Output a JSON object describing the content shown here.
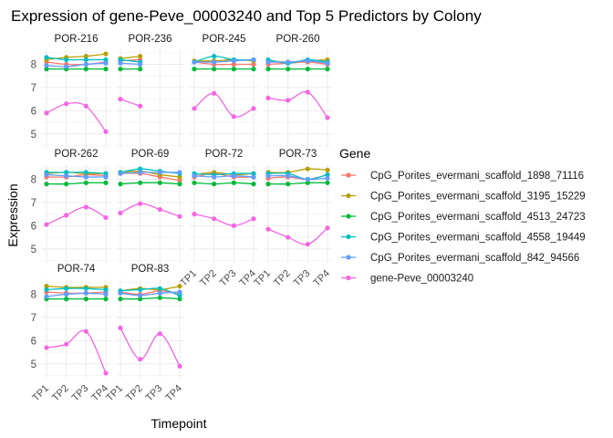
{
  "chart_data": {
    "type": "line",
    "title": "Expression of gene-Peve_00003240 and Top 5 Predictors by Colony",
    "xlabel": "Timepoint",
    "ylabel": "Expression",
    "x": [
      "TP1",
      "TP2",
      "TP3",
      "TP4"
    ],
    "y_ticks": [
      5,
      6,
      7,
      8
    ],
    "ylim": [
      4.4,
      8.65
    ],
    "grid": true,
    "legend": {
      "title": "Gene",
      "position": "right"
    },
    "series": [
      {
        "name": "CpG_Porites_evermani_scaffold_1898_71116",
        "color": "#F8766D"
      },
      {
        "name": "CpG_Porites_evermani_scaffold_3195_15229",
        "color": "#B79F00"
      },
      {
        "name": "CpG_Porites_evermani_scaffold_4513_24723",
        "color": "#00BA38"
      },
      {
        "name": "CpG_Porites_evermani_scaffold_4558_19449",
        "color": "#00BFC4"
      },
      {
        "name": "CpG_Porites_evermani_scaffold_842_94566",
        "color": "#619CFF"
      },
      {
        "name": "gene-Peve_00003240",
        "color": "#F564E3"
      }
    ],
    "panels": [
      {
        "name": "POR-216",
        "values": [
          [
            8.1,
            8.0,
            8.0,
            8.1
          ],
          [
            8.2,
            8.3,
            8.35,
            8.45
          ],
          [
            7.8,
            7.8,
            7.8,
            7.8
          ],
          [
            8.3,
            8.2,
            8.2,
            8.2
          ],
          [
            7.95,
            7.9,
            8.0,
            8.05
          ],
          [
            5.9,
            6.3,
            6.2,
            5.1
          ]
        ]
      },
      {
        "name": "POR-236",
        "values": [
          [
            8.15,
            8.2,
            null,
            null
          ],
          [
            8.25,
            8.35,
            null,
            null
          ],
          [
            7.8,
            7.8,
            null,
            null
          ],
          [
            8.2,
            8.1,
            null,
            null
          ],
          [
            8.05,
            8.0,
            null,
            null
          ],
          [
            6.5,
            6.2,
            null,
            null
          ]
        ]
      },
      {
        "name": "POR-245",
        "values": [
          [
            8.1,
            8.0,
            8.0,
            8.0
          ],
          [
            8.15,
            8.15,
            8.2,
            8.15
          ],
          [
            7.8,
            7.8,
            7.8,
            7.8
          ],
          [
            8.1,
            8.35,
            8.2,
            8.2
          ],
          [
            8.1,
            8.1,
            8.15,
            8.2
          ],
          [
            6.1,
            6.75,
            5.75,
            6.1
          ]
        ]
      },
      {
        "name": "POR-260",
        "values": [
          [
            8.0,
            8.05,
            8.1,
            8.0
          ],
          [
            8.15,
            8.1,
            8.15,
            8.2
          ],
          [
            7.8,
            7.8,
            7.8,
            7.8
          ],
          [
            8.2,
            8.05,
            8.2,
            8.1
          ],
          [
            8.1,
            8.1,
            8.15,
            8.05
          ],
          [
            6.55,
            6.45,
            6.8,
            5.7
          ]
        ]
      },
      {
        "name": "POR-262",
        "values": [
          [
            8.1,
            8.1,
            8.2,
            8.15
          ],
          [
            8.25,
            8.3,
            8.25,
            8.25
          ],
          [
            7.8,
            7.8,
            7.85,
            7.85
          ],
          [
            8.3,
            8.3,
            8.3,
            8.25
          ],
          [
            8.2,
            8.15,
            8.1,
            8.1
          ],
          [
            6.05,
            6.45,
            6.8,
            6.35
          ]
        ]
      },
      {
        "name": "POR-69",
        "values": [
          [
            8.25,
            8.25,
            8.1,
            7.95
          ],
          [
            8.3,
            8.35,
            8.2,
            8.1
          ],
          [
            7.8,
            7.85,
            7.85,
            7.8
          ],
          [
            8.3,
            8.45,
            8.35,
            8.25
          ],
          [
            8.25,
            8.3,
            8.3,
            8.3
          ],
          [
            6.55,
            6.95,
            6.7,
            6.4
          ]
        ]
      },
      {
        "name": "POR-72",
        "values": [
          [
            8.1,
            8.25,
            8.1,
            8.1
          ],
          [
            8.2,
            8.3,
            8.2,
            8.25
          ],
          [
            7.85,
            7.8,
            7.85,
            7.8
          ],
          [
            8.25,
            8.2,
            8.25,
            8.25
          ],
          [
            8.15,
            8.1,
            8.15,
            8.1
          ],
          [
            6.5,
            6.3,
            6.0,
            6.3
          ]
        ]
      },
      {
        "name": "POR-73",
        "values": [
          [
            8.05,
            8.1,
            8.0,
            8.2
          ],
          [
            8.3,
            8.3,
            8.45,
            8.4
          ],
          [
            7.8,
            7.8,
            7.85,
            7.85
          ],
          [
            8.25,
            8.25,
            8.0,
            8.2
          ],
          [
            8.15,
            8.15,
            8.0,
            8.05
          ],
          [
            5.85,
            5.5,
            5.2,
            5.9
          ]
        ]
      },
      {
        "name": "POR-74",
        "values": [
          [
            8.1,
            8.05,
            8.05,
            8.1
          ],
          [
            8.35,
            8.3,
            8.3,
            8.3
          ],
          [
            7.8,
            7.8,
            7.8,
            7.8
          ],
          [
            8.2,
            8.25,
            8.25,
            8.2
          ],
          [
            7.9,
            8.0,
            8.05,
            8.0
          ],
          [
            5.7,
            5.85,
            6.4,
            4.6
          ]
        ]
      },
      {
        "name": "POR-83",
        "values": [
          [
            8.1,
            8.0,
            8.15,
            8.0
          ],
          [
            8.15,
            8.25,
            8.2,
            8.35
          ],
          [
            7.8,
            7.8,
            7.85,
            7.8
          ],
          [
            8.15,
            8.2,
            8.25,
            7.95
          ],
          [
            8.05,
            7.95,
            8.05,
            8.1
          ],
          [
            6.55,
            5.2,
            6.3,
            4.9
          ]
        ]
      }
    ]
  }
}
